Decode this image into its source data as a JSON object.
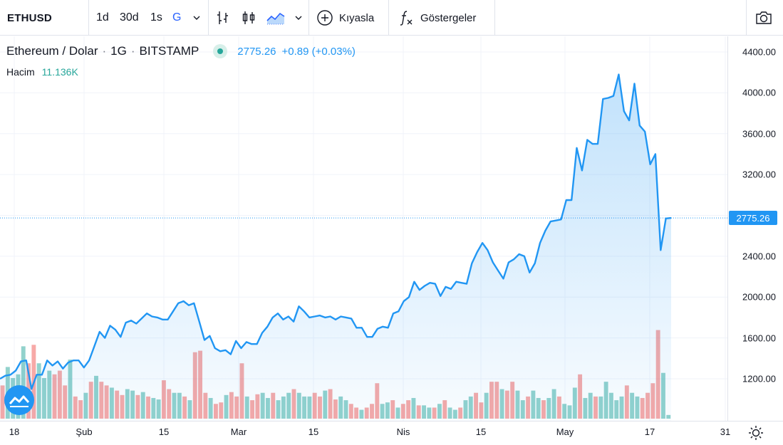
{
  "toolbar": {
    "symbol": "ETHUSD",
    "intervals": [
      "1d",
      "30d",
      "1s",
      "G"
    ],
    "active_interval": "G",
    "compare_label": "Kıyasla",
    "indicators_label": "Göstergeler"
  },
  "legend": {
    "name": "Ethereum / Dolar",
    "interval": "1G",
    "exchange": "BITSTAMP",
    "price": "2775.26",
    "change": "+0.89 (+0.03%)"
  },
  "volume": {
    "label": "Hacim",
    "value": "11.136K"
  },
  "price_axis": {
    "labels": [
      "4400.00",
      "4000.00",
      "3600.00",
      "3200.00",
      "2800.00",
      "2400.00",
      "2000.00",
      "1600.00",
      "1200.00"
    ],
    "last_price": "2775.26"
  },
  "time_axis": {
    "labels": [
      "18",
      "Şub",
      "15",
      "Mar",
      "15",
      "Nis",
      "15",
      "May",
      "17",
      "31"
    ]
  },
  "colors": {
    "line": "#2196f3",
    "up_volume": "#26a69a",
    "down_volume": "#ef5350",
    "active": "#2962ff"
  },
  "chart_data": {
    "type": "area",
    "y_range": [
      900,
      4500
    ],
    "price_series": [
      1200,
      1230,
      1240,
      1280,
      1370,
      1380,
      1100,
      1240,
      1240,
      1380,
      1330,
      1370,
      1300,
      1360,
      1380,
      1380,
      1310,
      1380,
      1520,
      1660,
      1600,
      1720,
      1680,
      1610,
      1750,
      1770,
      1740,
      1790,
      1840,
      1810,
      1800,
      1780,
      1780,
      1860,
      1940,
      1960,
      1920,
      1940,
      1760,
      1580,
      1620,
      1500,
      1470,
      1480,
      1440,
      1570,
      1500,
      1560,
      1540,
      1540,
      1650,
      1710,
      1800,
      1840,
      1780,
      1810,
      1760,
      1910,
      1860,
      1800,
      1810,
      1820,
      1800,
      1810,
      1780,
      1810,
      1800,
      1790,
      1700,
      1700,
      1610,
      1610,
      1690,
      1710,
      1700,
      1840,
      1860,
      1960,
      2000,
      2150,
      2070,
      2110,
      2140,
      2130,
      2010,
      2100,
      2080,
      2150,
      2140,
      2130,
      2330,
      2440,
      2530,
      2460,
      2340,
      2260,
      2180,
      2340,
      2370,
      2420,
      2400,
      2240,
      2330,
      2530,
      2650,
      2740,
      2750,
      2760,
      2950,
      2950,
      3460,
      3240,
      3540,
      3500,
      3500,
      3940,
      3950,
      3970,
      4180,
      3820,
      3730,
      4090,
      3680,
      3620,
      3300,
      3400,
      2460,
      2770,
      2775
    ],
    "volume_series": [
      {
        "v": 0.45,
        "up": false
      },
      {
        "v": 0.7,
        "up": true
      },
      {
        "v": 0.55,
        "up": true
      },
      {
        "v": 0.6,
        "up": true
      },
      {
        "v": 0.98,
        "up": true
      },
      {
        "v": 0.75,
        "up": false
      },
      {
        "v": 1.0,
        "up": false
      },
      {
        "v": 0.75,
        "up": true
      },
      {
        "v": 0.55,
        "up": true
      },
      {
        "v": 0.65,
        "up": true
      },
      {
        "v": 0.6,
        "up": false
      },
      {
        "v": 0.65,
        "up": false
      },
      {
        "v": 0.45,
        "up": false
      },
      {
        "v": 0.8,
        "up": true
      },
      {
        "v": 0.3,
        "up": false
      },
      {
        "v": 0.25,
        "up": false
      },
      {
        "v": 0.35,
        "up": true
      },
      {
        "v": 0.5,
        "up": false
      },
      {
        "v": 0.58,
        "up": true
      },
      {
        "v": 0.5,
        "up": false
      },
      {
        "v": 0.45,
        "up": false
      },
      {
        "v": 0.42,
        "up": true
      },
      {
        "v": 0.38,
        "up": false
      },
      {
        "v": 0.32,
        "up": false
      },
      {
        "v": 0.4,
        "up": true
      },
      {
        "v": 0.38,
        "up": true
      },
      {
        "v": 0.32,
        "up": false
      },
      {
        "v": 0.36,
        "up": true
      },
      {
        "v": 0.3,
        "up": false
      },
      {
        "v": 0.28,
        "up": true
      },
      {
        "v": 0.26,
        "up": true
      },
      {
        "v": 0.52,
        "up": false
      },
      {
        "v": 0.4,
        "up": false
      },
      {
        "v": 0.35,
        "up": true
      },
      {
        "v": 0.35,
        "up": true
      },
      {
        "v": 0.3,
        "up": false
      },
      {
        "v": 0.25,
        "up": true
      },
      {
        "v": 0.9,
        "up": false
      },
      {
        "v": 0.92,
        "up": false
      },
      {
        "v": 0.35,
        "up": false
      },
      {
        "v": 0.28,
        "up": true
      },
      {
        "v": 0.2,
        "up": false
      },
      {
        "v": 0.22,
        "up": false
      },
      {
        "v": 0.32,
        "up": true
      },
      {
        "v": 0.36,
        "up": false
      },
      {
        "v": 0.3,
        "up": false
      },
      {
        "v": 0.75,
        "up": false
      },
      {
        "v": 0.3,
        "up": true
      },
      {
        "v": 0.25,
        "up": false
      },
      {
        "v": 0.33,
        "up": false
      },
      {
        "v": 0.35,
        "up": true
      },
      {
        "v": 0.28,
        "up": true
      },
      {
        "v": 0.35,
        "up": false
      },
      {
        "v": 0.25,
        "up": true
      },
      {
        "v": 0.3,
        "up": true
      },
      {
        "v": 0.35,
        "up": true
      },
      {
        "v": 0.4,
        "up": false
      },
      {
        "v": 0.35,
        "up": true
      },
      {
        "v": 0.3,
        "up": true
      },
      {
        "v": 0.3,
        "up": true
      },
      {
        "v": 0.35,
        "up": false
      },
      {
        "v": 0.3,
        "up": false
      },
      {
        "v": 0.38,
        "up": true
      },
      {
        "v": 0.4,
        "up": false
      },
      {
        "v": 0.26,
        "up": false
      },
      {
        "v": 0.3,
        "up": true
      },
      {
        "v": 0.25,
        "up": true
      },
      {
        "v": 0.2,
        "up": false
      },
      {
        "v": 0.15,
        "up": false
      },
      {
        "v": 0.12,
        "up": true
      },
      {
        "v": 0.15,
        "up": false
      },
      {
        "v": 0.2,
        "up": false
      },
      {
        "v": 0.48,
        "up": false
      },
      {
        "v": 0.2,
        "up": true
      },
      {
        "v": 0.22,
        "up": true
      },
      {
        "v": 0.25,
        "up": false
      },
      {
        "v": 0.15,
        "up": true
      },
      {
        "v": 0.2,
        "up": false
      },
      {
        "v": 0.25,
        "up": false
      },
      {
        "v": 0.28,
        "up": true
      },
      {
        "v": 0.18,
        "up": false
      },
      {
        "v": 0.18,
        "up": true
      },
      {
        "v": 0.15,
        "up": true
      },
      {
        "v": 0.15,
        "up": false
      },
      {
        "v": 0.2,
        "up": true
      },
      {
        "v": 0.25,
        "up": false
      },
      {
        "v": 0.15,
        "up": true
      },
      {
        "v": 0.12,
        "up": true
      },
      {
        "v": 0.15,
        "up": false
      },
      {
        "v": 0.25,
        "up": true
      },
      {
        "v": 0.3,
        "up": true
      },
      {
        "v": 0.35,
        "up": false
      },
      {
        "v": 0.22,
        "up": false
      },
      {
        "v": 0.35,
        "up": true
      },
      {
        "v": 0.5,
        "up": false
      },
      {
        "v": 0.5,
        "up": false
      },
      {
        "v": 0.4,
        "up": true
      },
      {
        "v": 0.38,
        "up": false
      },
      {
        "v": 0.5,
        "up": false
      },
      {
        "v": 0.38,
        "up": true
      },
      {
        "v": 0.25,
        "up": true
      },
      {
        "v": 0.3,
        "up": false
      },
      {
        "v": 0.38,
        "up": true
      },
      {
        "v": 0.28,
        "up": true
      },
      {
        "v": 0.25,
        "up": false
      },
      {
        "v": 0.28,
        "up": true
      },
      {
        "v": 0.4,
        "up": true
      },
      {
        "v": 0.3,
        "up": false
      },
      {
        "v": 0.2,
        "up": true
      },
      {
        "v": 0.18,
        "up": true
      },
      {
        "v": 0.42,
        "up": true
      },
      {
        "v": 0.6,
        "up": false
      },
      {
        "v": 0.28,
        "up": true
      },
      {
        "v": 0.35,
        "up": true
      },
      {
        "v": 0.3,
        "up": false
      },
      {
        "v": 0.3,
        "up": true
      },
      {
        "v": 0.5,
        "up": true
      },
      {
        "v": 0.35,
        "up": true
      },
      {
        "v": 0.25,
        "up": true
      },
      {
        "v": 0.3,
        "up": true
      },
      {
        "v": 0.45,
        "up": false
      },
      {
        "v": 0.35,
        "up": true
      },
      {
        "v": 0.3,
        "up": true
      },
      {
        "v": 0.28,
        "up": false
      },
      {
        "v": 0.35,
        "up": false
      },
      {
        "v": 0.48,
        "up": false
      },
      {
        "v": 1.2,
        "up": false
      },
      {
        "v": 0.62,
        "up": true
      },
      {
        "v": 0.05,
        "up": true
      }
    ]
  }
}
